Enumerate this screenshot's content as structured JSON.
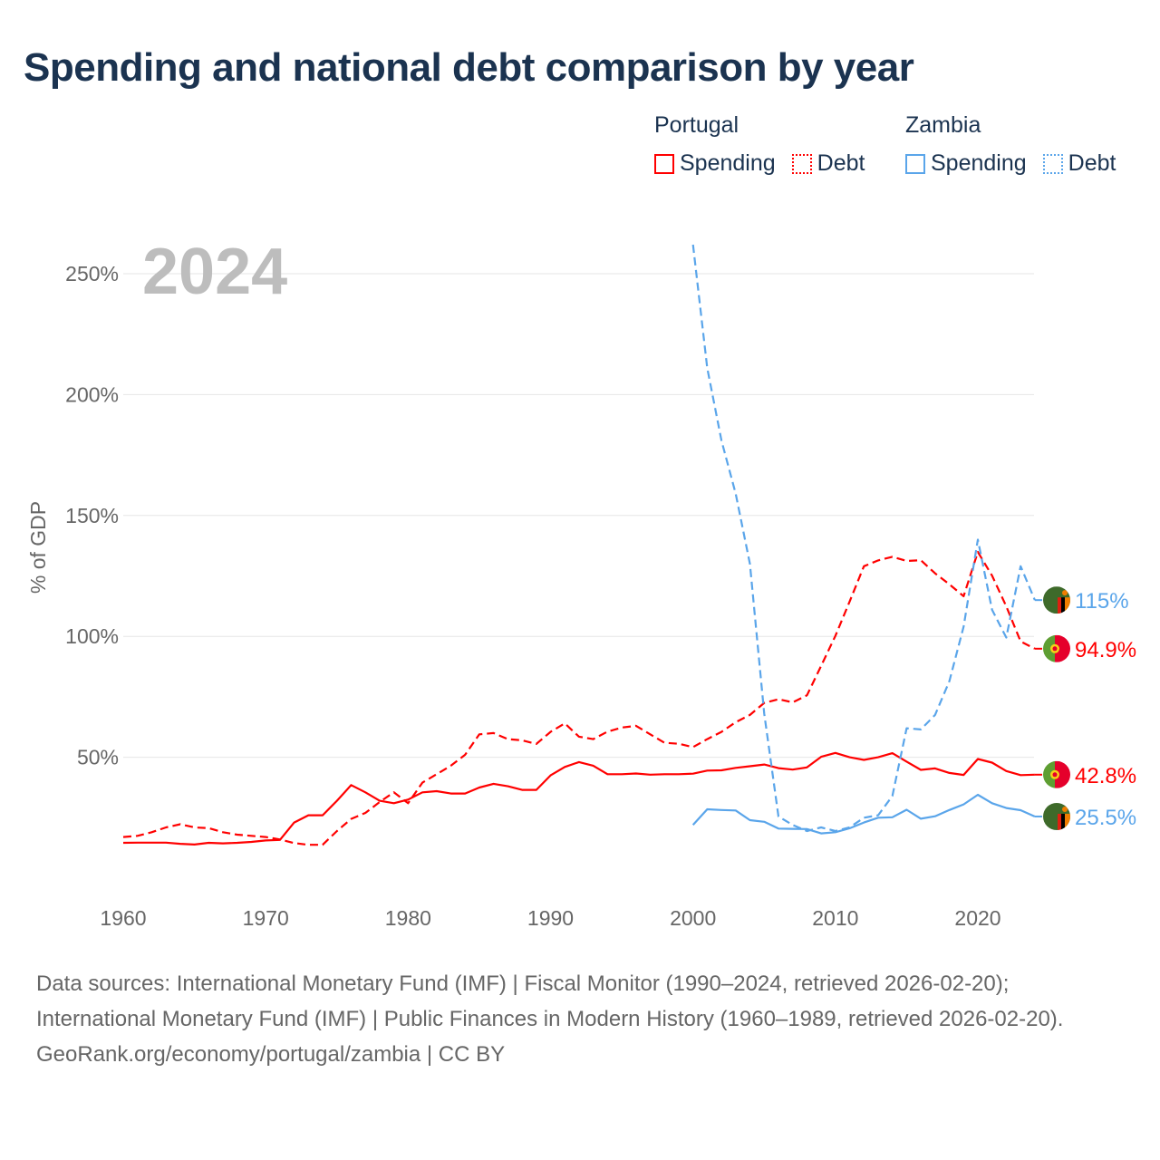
{
  "title": "Spending and national debt comparison by year",
  "legend": {
    "groups": [
      {
        "country": "Portugal",
        "color": "#ff0000",
        "items": [
          "Spending",
          "Debt"
        ]
      },
      {
        "country": "Zambia",
        "color": "#5aa5ea",
        "items": [
          "Spending",
          "Debt"
        ]
      }
    ]
  },
  "year_label": "2024",
  "footer": {
    "sources": "Data sources: International Monetary Fund (IMF) | Fiscal Monitor (1990–2024, retrieved 2026-02-20); International Monetary Fund (IMF) | Public Finances in Modern History (1960–1989, retrieved 2026-02-20).",
    "credit": "GeoRank.org/economy/portugal/zambia | CC BY"
  },
  "chart_data": {
    "type": "line",
    "title": "Spending and national debt comparison by year",
    "xlabel": "",
    "ylabel": "% of GDP",
    "xlim": [
      1960,
      2024
    ],
    "ylim": [
      0,
      262
    ],
    "x_ticks": [
      1960,
      1970,
      1980,
      1990,
      2000,
      2010,
      2020
    ],
    "y_ticks": [
      50,
      100,
      150,
      200,
      250
    ],
    "y_tick_labels": [
      "50%",
      "100%",
      "150%",
      "200%",
      "250%"
    ],
    "grid": true,
    "series": [
      {
        "name": "Portugal Spending",
        "color": "#ff0000",
        "dash": false,
        "start": 1960,
        "end_label": "42.8%",
        "values": [
          14.6,
          14.7,
          14.7,
          14.7,
          14.2,
          13.9,
          14.6,
          14.4,
          14.6,
          15,
          15.6,
          15.8,
          23,
          26,
          26,
          32,
          38.5,
          35.5,
          32,
          31,
          32.5,
          35.5,
          36,
          35,
          35,
          37.5,
          39,
          38,
          36.5,
          36.5,
          42.5,
          46,
          48,
          46.5,
          43,
          43,
          43.3,
          42.8,
          43,
          43,
          43.2,
          44.5,
          44.6,
          45.6,
          46.3,
          47,
          45.5,
          44.9,
          45.8,
          50.2,
          51.8,
          50,
          48.9,
          50,
          51.7,
          48.2,
          44.8,
          45.4,
          43.5,
          42.7,
          49.3,
          47.8,
          44.3,
          42.6,
          42.8
        ]
      },
      {
        "name": "Portugal Debt",
        "color": "#ff0000",
        "dash": true,
        "start": 1960,
        "end_label": "94.9%",
        "values": [
          17,
          17.5,
          19,
          21,
          22.3,
          21,
          20.7,
          19,
          18,
          17.5,
          17,
          16,
          14.5,
          13.8,
          13.8,
          19.5,
          24.5,
          27,
          31.5,
          35.5,
          31,
          39.5,
          43,
          46.5,
          51,
          59.5,
          60,
          57.5,
          57,
          55.5,
          60.5,
          64,
          58.5,
          57.5,
          60.6,
          62.3,
          63,
          59.5,
          56,
          55.6,
          54.2,
          57.5,
          60.5,
          64.5,
          67.5,
          72.5,
          74,
          72.7,
          75.6,
          87.8,
          100.2,
          114.4,
          129,
          131.4,
          132.9,
          131.2,
          131.5,
          126.1,
          121.5,
          116.6,
          134.9,
          125.1,
          112.4,
          97.9,
          94.9
        ]
      },
      {
        "name": "Zambia Spending",
        "color": "#5aa5ea",
        "dash": false,
        "start": 2000,
        "end_label": "25.5%",
        "values": [
          22,
          28.5,
          28.2,
          28,
          24,
          23.3,
          20.5,
          20.4,
          20.3,
          18.5,
          19,
          20.6,
          23,
          25,
          25.2,
          28.3,
          24.6,
          25.6,
          28.2,
          30.5,
          34.5,
          31,
          29,
          28.1,
          25.5
        ]
      },
      {
        "name": "Zambia Debt",
        "color": "#5aa5ea",
        "dash": true,
        "start": 2000,
        "end_label": "115%",
        "values": [
          262,
          211,
          181,
          159,
          130,
          68,
          25.5,
          22,
          19.5,
          21,
          19.5,
          21,
          25,
          26,
          34,
          62,
          61.5,
          67.5,
          81.5,
          104,
          140,
          111,
          99.5,
          129,
          115
        ]
      }
    ]
  }
}
